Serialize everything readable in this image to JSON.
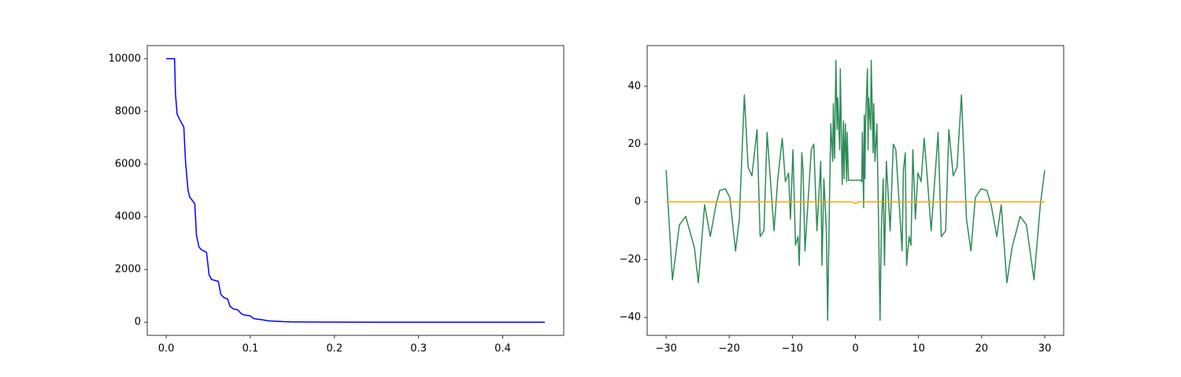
{
  "chart_data": [
    {
      "type": "line",
      "xlim": [
        -0.0225,
        0.4725
      ],
      "ylim": [
        -500,
        10500
      ],
      "xticks": [
        {
          "value": 0,
          "label": "0.0"
        },
        0.1,
        0.2,
        0.3,
        0.4
      ],
      "yticks": [
        0,
        2000,
        4000,
        6000,
        8000,
        10000
      ],
      "series": [
        {
          "color": "#0000ff",
          "x": [
            0,
            0.01,
            0.011,
            0.013,
            0.016,
            0.021,
            0.023,
            0.026,
            0.028,
            0.034,
            0.036,
            0.039,
            0.042,
            0.048,
            0.051,
            0.054,
            0.062,
            0.065,
            0.069,
            0.073,
            0.076,
            0.08,
            0.085,
            0.089,
            0.093,
            0.1,
            0.104,
            0.108,
            0.115,
            0.12,
            0.125,
            0.13,
            0.14,
            0.15,
            0.17,
            0.2,
            0.25,
            0.3,
            0.35,
            0.4,
            0.45
          ],
          "values": [
            10000,
            10000,
            8700,
            7900,
            7700,
            7400,
            6100,
            5000,
            4750,
            4500,
            3300,
            2850,
            2750,
            2650,
            1800,
            1620,
            1550,
            1050,
            930,
            880,
            600,
            500,
            470,
            330,
            270,
            240,
            140,
            120,
            90,
            60,
            45,
            35,
            20,
            12,
            5,
            2,
            1,
            0,
            0,
            0,
            0
          ]
        }
      ]
    },
    {
      "type": "line",
      "xlim": [
        -33,
        33
      ],
      "ylim": [
        -46.2,
        54.1
      ],
      "xticks": [
        {
          "value": -30,
          "label": "−30"
        },
        {
          "value": -20,
          "label": "−20"
        },
        {
          "value": -10,
          "label": "−10"
        },
        0,
        10,
        20,
        30
      ],
      "yticks": [
        {
          "value": -40,
          "label": "−40"
        },
        {
          "value": -20,
          "label": "−20"
        },
        0,
        20,
        40
      ],
      "series": [
        {
          "color": "#2e8b57",
          "x": [
            -30,
            -29,
            -27.9,
            -26.9,
            -25.5,
            -24.9,
            -23.9,
            -23,
            -22.1,
            -21.5,
            -20.6,
            -19.9,
            -19,
            -18.4,
            -17.6,
            -17,
            -16.4,
            -15.6,
            -15.1,
            -14.5,
            -14,
            -12.9,
            -12.3,
            -11.6,
            -11.1,
            -10.6,
            -10.3,
            -9.9,
            -9.5,
            -9.1,
            -8.9,
            -8.5,
            -8.3,
            -8,
            -7,
            -6.6,
            -6.1,
            -5.5,
            -5.3,
            -5,
            -4.6,
            -4.4,
            -4.1,
            -3.9,
            -3.6,
            -3.5,
            -3.3,
            -3.1,
            -2.9,
            -2.8,
            -2.5,
            -2.4,
            -2.1,
            -1.9,
            -1.8,
            -1.6,
            -1.4,
            -1.3,
            -1.1,
            0.9,
            1,
            1.1,
            1.3,
            1.4,
            1.5,
            1.6,
            1.9,
            2,
            2.1,
            2.4,
            2.5,
            2.8,
            2.9,
            3.1,
            3.4,
            3.6,
            3.9,
            4.1,
            4.4,
            4.6,
            4.9,
            5.5,
            6,
            6.4,
            7.4,
            7.6,
            7.9,
            8.1,
            8.5,
            8.8,
            9.1,
            9.5,
            9.9,
            10.4,
            10.9,
            11.4,
            12,
            13.1,
            13.6,
            14.3,
            14.8,
            15.5,
            16.1,
            16.8,
            17.6,
            18.3,
            19,
            19.9,
            20.8,
            21.5,
            22.4,
            23.1,
            24,
            24.8,
            26.1,
            27.1,
            28.3,
            29.3,
            30
          ],
          "values": [
            11,
            -27,
            -8,
            -5,
            -16,
            -28,
            -1,
            -12,
            -1,
            4,
            4.5,
            1.5,
            -17,
            -6,
            37,
            12,
            9,
            25,
            -12,
            -10,
            24,
            -10,
            8,
            22,
            7,
            10,
            -6,
            18,
            -15,
            -12,
            -22,
            17,
            11,
            -17,
            18,
            20,
            -10,
            14,
            -22,
            8,
            -10,
            -41,
            2,
            27,
            14,
            34,
            15,
            49,
            25,
            36,
            18,
            46,
            6,
            28,
            8,
            27,
            7,
            24,
            7.5,
            7.5,
            7,
            24,
            -2,
            30,
            8,
            27,
            46,
            18,
            36,
            25,
            49,
            17,
            34,
            14,
            27,
            2,
            -41,
            -10,
            8,
            -22,
            14,
            -10,
            20,
            18,
            -17,
            11,
            17,
            -22,
            -12,
            -15,
            18,
            -6,
            10,
            7,
            22,
            8,
            -10,
            24,
            -12,
            -10,
            25,
            9,
            12,
            37,
            -6,
            -17,
            1.5,
            4.5,
            4,
            -1,
            -12,
            -1,
            -28,
            -16,
            -5,
            -8,
            -27,
            -1,
            11
          ]
        },
        {
          "color": "#ffa500",
          "x": [
            -30,
            -0.6,
            0,
            0.6,
            30
          ],
          "values": [
            0,
            0,
            -0.5,
            0,
            0
          ]
        }
      ]
    }
  ]
}
